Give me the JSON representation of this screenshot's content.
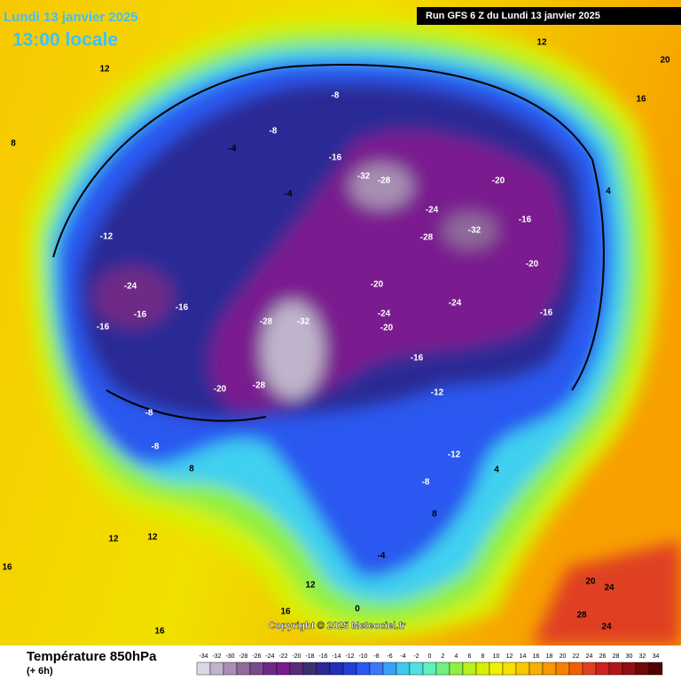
{
  "header": {
    "date": "Lundi 13 janvier 2025",
    "time": "13:00 locale",
    "run": "Run GFS 6 Z du Lundi 13 janvier 2025"
  },
  "copyright": "Copyright © 2025 Meteociel.fr",
  "legend": {
    "title": "Température 850hPa",
    "subtitle": "(+ 6h)",
    "values": [
      -34,
      -32,
      -30,
      -28,
      -26,
      -24,
      -22,
      -20,
      -18,
      -16,
      -14,
      -12,
      -10,
      -8,
      -6,
      -4,
      -2,
      0,
      2,
      4,
      6,
      8,
      10,
      12,
      14,
      16,
      18,
      20,
      22,
      24,
      26,
      28,
      30,
      32,
      34
    ],
    "colors": [
      "#d9d9e6",
      "#c0b4cc",
      "#a88fb3",
      "#8f6b99",
      "#7a4a8a",
      "#6e2a86",
      "#7a1a8f",
      "#5a2a7a",
      "#3a3070",
      "#2a2a96",
      "#2030b8",
      "#2040d8",
      "#2a58f0",
      "#3a78f8",
      "#3aa0f8",
      "#40c8f0",
      "#50e0e0",
      "#60f0c0",
      "#70f080",
      "#90f040",
      "#b8f020",
      "#d8f000",
      "#f0f000",
      "#f8e000",
      "#f8c800",
      "#f8b000",
      "#f89800",
      "#f88000",
      "#f06000",
      "#e04020",
      "#d02020",
      "#b01818",
      "#901010",
      "#700808",
      "#500000"
    ]
  },
  "map": {
    "contour_labels": [
      -24,
      -16,
      -16,
      -16,
      -8,
      -8,
      -20,
      -24,
      -20,
      -28,
      -32,
      -16,
      -12,
      -12,
      -8,
      -16,
      -32,
      -28,
      -24,
      -28,
      -32,
      -20,
      -16,
      -24,
      -20,
      -16,
      -8,
      -8,
      -4,
      -4,
      -12,
      -20,
      -28,
      0,
      -4,
      4,
      8,
      12,
      12,
      16,
      20,
      16,
      12,
      8,
      12,
      20,
      24,
      28,
      24,
      4,
      8,
      12,
      16,
      16
    ]
  }
}
